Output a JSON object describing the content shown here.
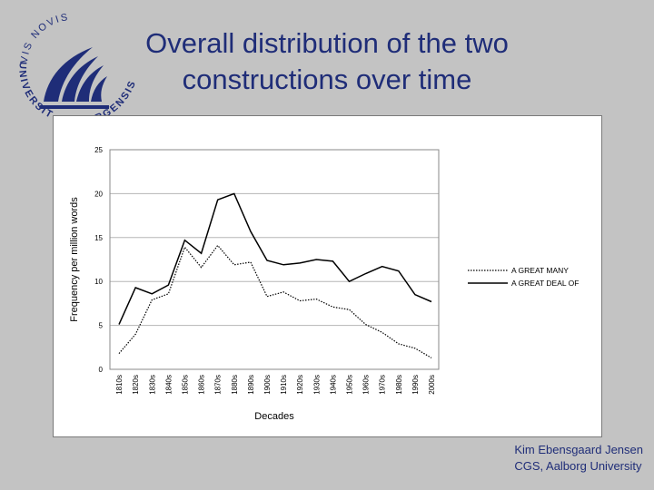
{
  "slide": {
    "title_lines": [
      "Overall distribution of the two",
      "constructions over time"
    ],
    "footer_lines": [
      "Kim Ebensgaard Jensen",
      "CGS, Aalborg University"
    ],
    "logo": {
      "icon": "university-seal-icon",
      "text_top": "VIS NOVIS",
      "text_left": "UNIVERSITAS",
      "text_right": "ALBORGENSIS"
    },
    "colors": {
      "background": "#c3c3c3",
      "title": "#1f2d78",
      "logo": "#1f2d78",
      "line": "#000000"
    }
  },
  "chart_data": {
    "type": "line",
    "title": "",
    "xlabel": "Decades",
    "ylabel": "Frequency per million words",
    "ylim": [
      0,
      25
    ],
    "yticks": [
      0,
      5,
      10,
      15,
      20,
      25
    ],
    "grid": "horizontal",
    "legend_position": "right",
    "categories": [
      "1810s",
      "1820s",
      "1830s",
      "1840s",
      "1850s",
      "1860s",
      "1870s",
      "1880s",
      "1890s",
      "1900s",
      "1910s",
      "1920s",
      "1930s",
      "1940s",
      "1950s",
      "1960s",
      "1970s",
      "1980s",
      "1990s",
      "2000s"
    ],
    "series": [
      {
        "name": "A GREAT MANY",
        "style": "dotted",
        "values": [
          1.8,
          4.0,
          7.9,
          8.6,
          13.9,
          11.6,
          14.1,
          11.9,
          12.2,
          8.3,
          8.8,
          7.8,
          8.0,
          7.1,
          6.8,
          5.1,
          4.2,
          2.9,
          2.4,
          1.3
        ]
      },
      {
        "name": "A GREAT DEAL OF",
        "style": "solid",
        "values": [
          5.1,
          9.3,
          8.6,
          9.6,
          14.7,
          13.2,
          19.3,
          20.0,
          15.7,
          12.4,
          11.9,
          12.1,
          12.5,
          12.3,
          10.0,
          10.9,
          11.7,
          11.2,
          8.5,
          7.7
        ]
      }
    ]
  }
}
